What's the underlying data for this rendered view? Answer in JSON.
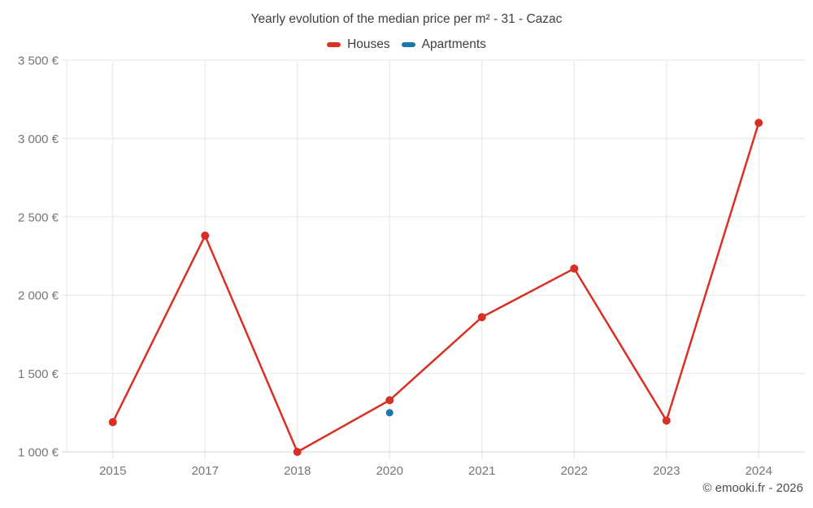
{
  "header": {
    "title": "Yearly evolution of the median price per m² - 31 - Cazac"
  },
  "legend": {
    "items": [
      {
        "label": "Houses",
        "color": "#d93025"
      },
      {
        "label": "Apartments",
        "color": "#1a78ad"
      }
    ]
  },
  "footer": {
    "credit": "© emooki.fr - 2026"
  },
  "chart_data": {
    "type": "line",
    "title": "Yearly evolution of the median price per m² - 31 - Cazac",
    "categories": [
      "2015",
      "2017",
      "2018",
      "2020",
      "2021",
      "2022",
      "2023",
      "2024"
    ],
    "series": [
      {
        "name": "Houses",
        "color": "#d93025",
        "values": [
          1190,
          2380,
          1000,
          1330,
          1860,
          2170,
          1200,
          3100
        ]
      },
      {
        "name": "Apartments",
        "color": "#1a78ad",
        "values": [
          null,
          null,
          null,
          1250,
          null,
          null,
          null,
          null
        ]
      }
    ],
    "ylabel": "",
    "xlabel": "",
    "ylim": [
      1000,
      3500
    ],
    "ytick_step": 500,
    "ytick_labels": [
      "1 000 €",
      "1 500 €",
      "2 000 €",
      "2 500 €",
      "3 000 €",
      "3 500 €"
    ],
    "grid": true,
    "legend_position": "top",
    "currency": "€"
  }
}
